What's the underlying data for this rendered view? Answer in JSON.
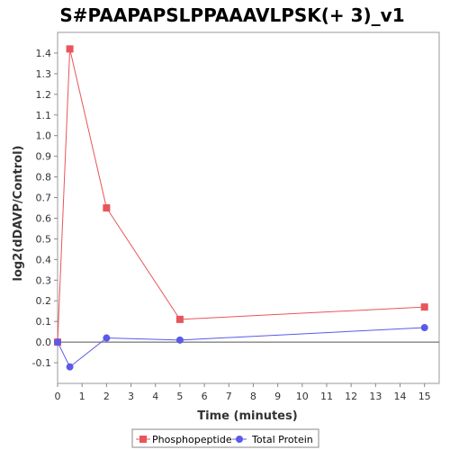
{
  "chart_data": {
    "type": "line",
    "title": "S#PAAPAPSLPPAAAVLPSK(+ 3)_v1",
    "xlabel": "Time (minutes)",
    "ylabel": "log2(dDAVP/Control)",
    "xlim": [
      0,
      15.6
    ],
    "ylim": [
      -0.2,
      1.5
    ],
    "xticks": [
      0,
      1,
      2,
      3,
      4,
      5,
      6,
      7,
      8,
      9,
      10,
      11,
      12,
      13,
      14,
      15
    ],
    "yticks": [
      -0.1,
      0.0,
      0.1,
      0.2,
      0.3,
      0.4,
      0.5,
      0.6,
      0.7,
      0.8,
      0.9,
      1.0,
      1.1,
      1.2,
      1.3,
      1.4
    ],
    "xtick_labels": [
      "0",
      "1",
      "2",
      "3",
      "4",
      "5",
      "6",
      "7",
      "8",
      "9",
      "10",
      "11",
      "12",
      "13",
      "14",
      "15"
    ],
    "ytick_labels": [
      "-0.1",
      "0.0",
      "0.1",
      "0.2",
      "0.3",
      "0.4",
      "0.5",
      "0.6",
      "0.7",
      "0.8",
      "0.9",
      "1.0",
      "1.1",
      "1.2",
      "1.3",
      "1.4"
    ],
    "grid": false,
    "legend_position": "bottom",
    "series": [
      {
        "name": "Phosphopeptide",
        "color": "#e8555a",
        "marker": "square",
        "x": [
          0,
          0.5,
          2,
          5,
          15
        ],
        "y": [
          0.0,
          1.42,
          0.65,
          0.11,
          0.17
        ]
      },
      {
        "name": "Total Protein",
        "color": "#5a5ae8",
        "marker": "circle",
        "x": [
          0,
          0.5,
          2,
          5,
          15
        ],
        "y": [
          0.0,
          -0.12,
          0.02,
          0.01,
          0.07
        ]
      }
    ]
  }
}
